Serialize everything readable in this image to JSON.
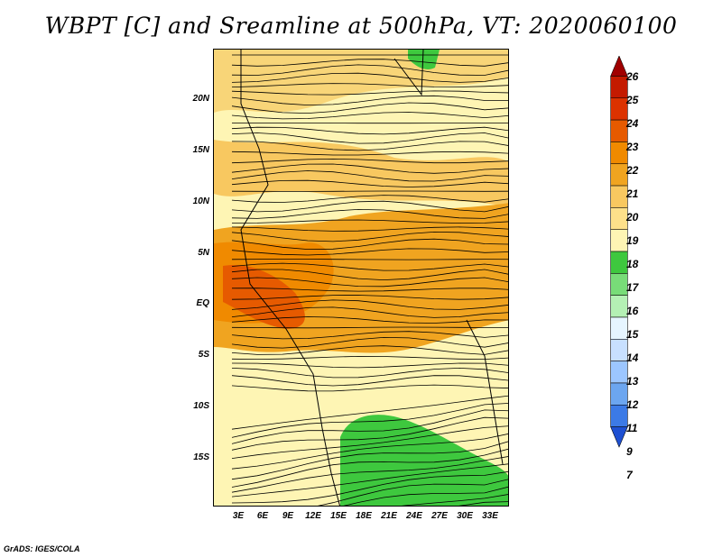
{
  "title": "WBPT [C] and Sreamline at 500hPa, VT: 2020060100",
  "credit": "GrADS: IGES/COLA",
  "map": {
    "lat_labels": [
      "20N",
      "15N",
      "10N",
      "5N",
      "EQ",
      "5S",
      "10S",
      "15S"
    ],
    "lat_values": [
      20,
      15,
      10,
      5,
      0,
      -5,
      -10,
      -15
    ],
    "lon_labels": [
      "3E",
      "6E",
      "9E",
      "12E",
      "15E",
      "18E",
      "21E",
      "24E",
      "27E",
      "30E",
      "33E"
    ],
    "lon_values": [
      3,
      6,
      9,
      12,
      15,
      18,
      21,
      24,
      27,
      30,
      33
    ],
    "lon_range": [
      0,
      35
    ],
    "lat_range": [
      -20,
      24.5
    ],
    "field": "Wet-bulb potential temperature (C)",
    "overlay": "Streamlines"
  },
  "colorbar": {
    "levels": [
      "26",
      "25",
      "24",
      "23",
      "22",
      "21",
      "20",
      "19",
      "18",
      "17",
      "16",
      "15",
      "14",
      "13",
      "12",
      "11",
      "9",
      "7"
    ],
    "colors": [
      "#a00000",
      "#c41a00",
      "#dc3200",
      "#e65a00",
      "#f08a00",
      "#f0a420",
      "#f8c860",
      "#fde08a",
      "#fef5b4",
      "#3ec83e",
      "#78dc78",
      "#b4f0b4",
      "#e6f5ff",
      "#c8e0ff",
      "#9cc6ff",
      "#6ca6f0",
      "#3c7ae6",
      "#1e50d2"
    ]
  }
}
